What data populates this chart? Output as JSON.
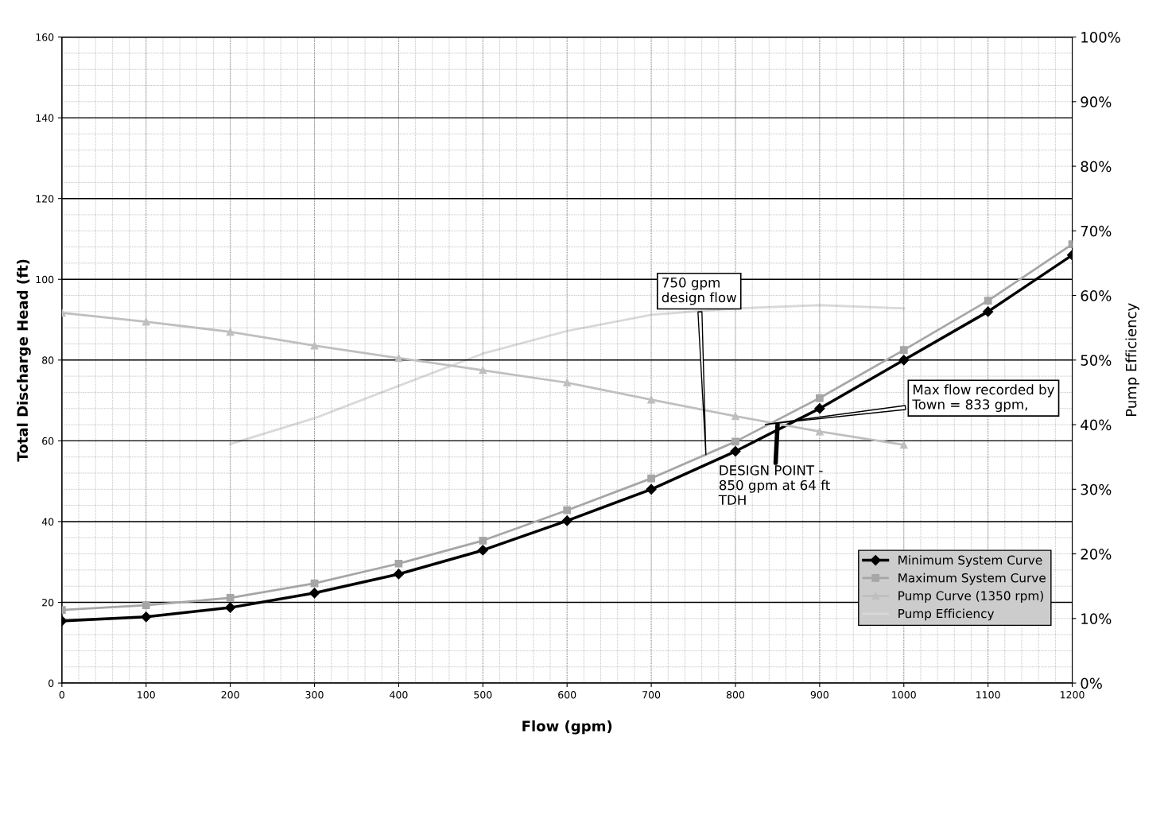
{
  "chart_data": {
    "type": "line",
    "xlabel": "Flow (gpm)",
    "ylabel": "Total Discharge Head (ft)",
    "y2label": "Pump Efficiency",
    "xlim": [
      0,
      1200
    ],
    "xticks": [
      0,
      100,
      200,
      300,
      400,
      500,
      600,
      700,
      800,
      900,
      1000,
      1100,
      1200
    ],
    "ylim": [
      0,
      160
    ],
    "yticks": [
      0,
      20,
      40,
      60,
      80,
      100,
      120,
      140,
      160
    ],
    "y2lim": [
      0,
      100
    ],
    "y2ticks": [
      {
        "value": 0,
        "label": "0%"
      },
      {
        "value": 10,
        "label": "10%"
      },
      {
        "value": 20,
        "label": "20%"
      },
      {
        "value": 30,
        "label": "30%"
      },
      {
        "value": 40,
        "label": "40%"
      },
      {
        "value": 50,
        "label": "50%"
      },
      {
        "value": 60,
        "label": "60%"
      },
      {
        "value": 70,
        "label": "70%"
      },
      {
        "value": 80,
        "label": "80%"
      },
      {
        "value": 90,
        "label": "90%"
      },
      {
        "value": 100,
        "label": "100%"
      }
    ],
    "grid": true,
    "legend": "bottom right",
    "series": [
      {
        "name": "Minimum System Curve",
        "color": "#000000",
        "marker": "diamond",
        "x": [
          0,
          100,
          200,
          300,
          400,
          500,
          600,
          700,
          800,
          900,
          1000,
          1100,
          1200
        ],
        "values": [
          15.4,
          16.4,
          18.7,
          22.3,
          27,
          32.9,
          40.2,
          48,
          57.4,
          68,
          80,
          92,
          106
        ]
      },
      {
        "name": "Maximum System Curve",
        "color": "#a6a6a6",
        "marker": "square",
        "x": [
          0,
          100,
          200,
          300,
          400,
          500,
          600,
          700,
          800,
          900,
          1000,
          1100,
          1200
        ],
        "values": [
          18.1,
          19.3,
          21.1,
          24.7,
          29.6,
          35.3,
          42.8,
          50.7,
          59.8,
          70.6,
          82.5,
          94.7,
          108.7
        ]
      },
      {
        "name": "Pump Curve (1350 rpm)",
        "color": "#bfbfbf",
        "marker": "triangle",
        "x": [
          0,
          100,
          200,
          300,
          400,
          500,
          600,
          700,
          800,
          900,
          1000
        ],
        "values": [
          91.7,
          89.5,
          87,
          83.6,
          80.5,
          77.5,
          74.4,
          70.2,
          66.1,
          62.3,
          59
        ]
      },
      {
        "name": "Pump Efficiency",
        "color": "#d9d9d9",
        "marker": "none",
        "axis": "y2",
        "x": [
          200,
          300,
          400,
          500,
          600,
          700,
          800,
          900,
          1000
        ],
        "values": [
          37,
          41,
          46,
          51,
          54.5,
          57,
          58,
          58.5,
          58
        ]
      }
    ],
    "annotations": [
      {
        "text": "750 gpm\ndesign flow",
        "x": 765,
        "y": 56
      },
      {
        "text": "Max flow recorded by\nTown = 833 gpm,",
        "x": 833,
        "y": 64
      },
      {
        "text": "DESIGN POINT -\n850 gpm at 64 ft\nTDH",
        "x": 850,
        "y": 64
      }
    ]
  }
}
